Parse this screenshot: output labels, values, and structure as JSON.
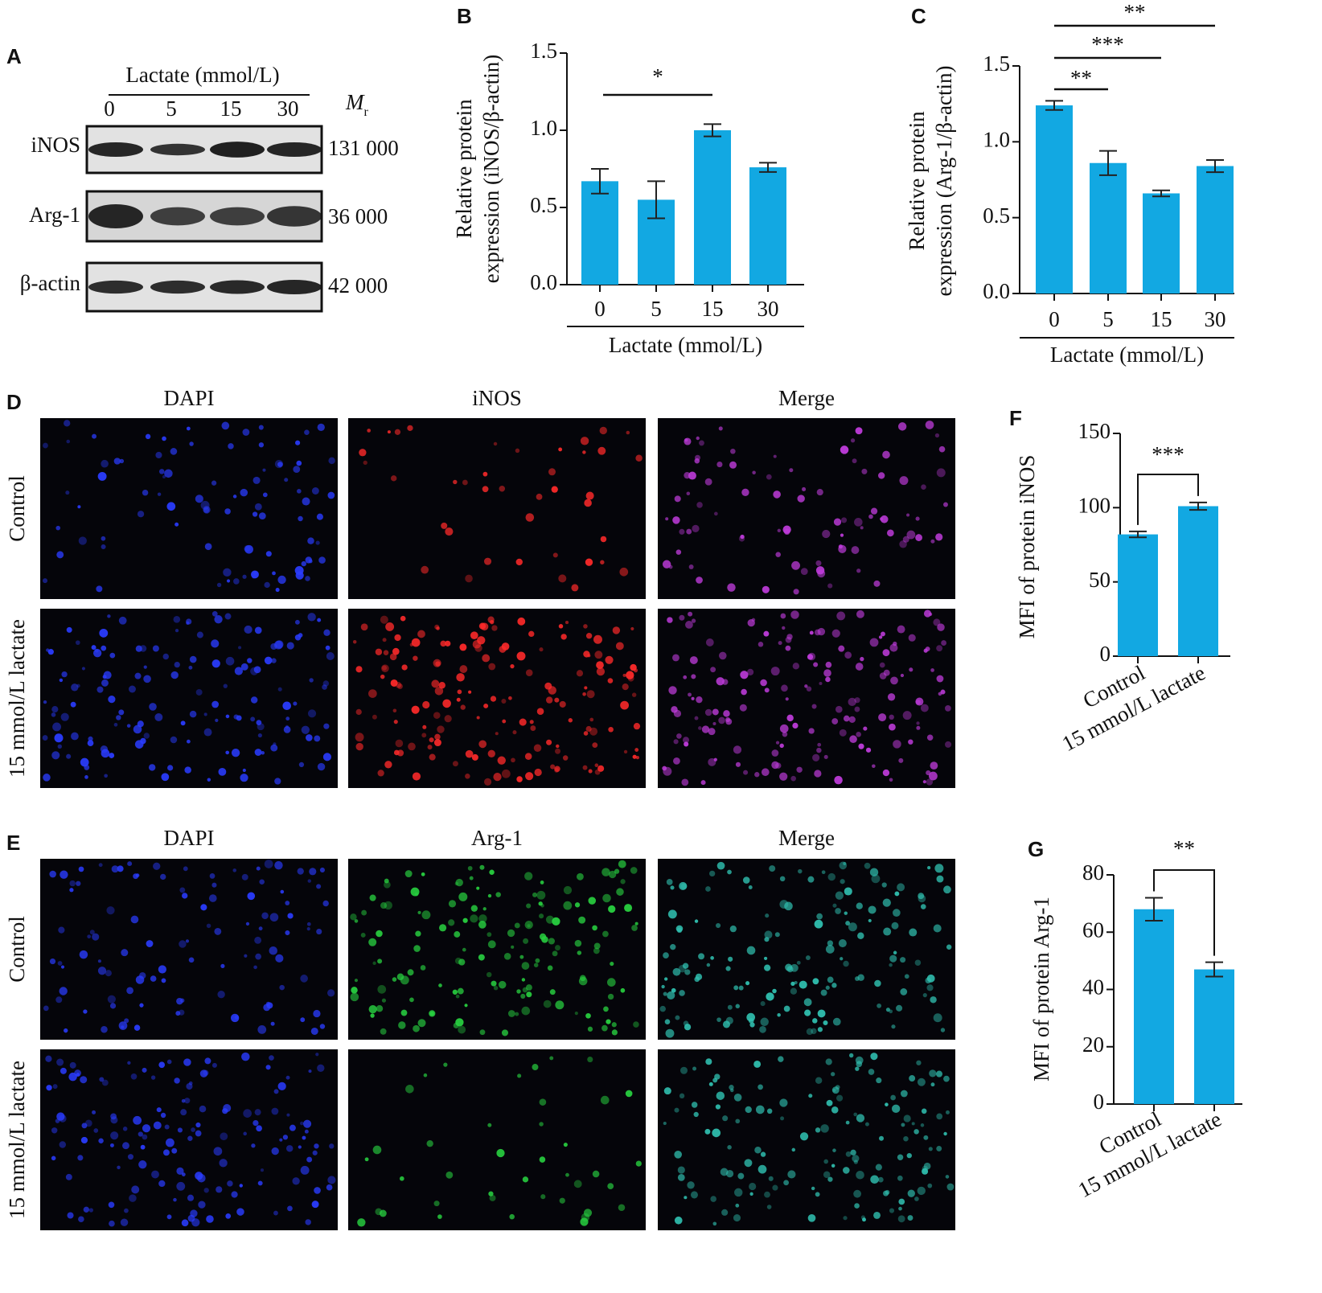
{
  "panels": {
    "A": {
      "letter": "A",
      "header": "Lactate (mmol/L)",
      "lanes": [
        "0",
        "5",
        "15",
        "30"
      ],
      "mr": {
        "symbol": "M",
        "subscript": "r"
      },
      "rows": [
        {
          "label": "iNOS",
          "size": "131 000"
        },
        {
          "label": "Arg-1",
          "size": "36 000"
        },
        {
          "label": "β-actin",
          "size": "42 000"
        }
      ]
    },
    "D": {
      "letter": "D",
      "columns": [
        "DAPI",
        "iNOS",
        "Merge"
      ],
      "rows": [
        "Control",
        "15 mmol/L lactate"
      ]
    },
    "E": {
      "letter": "E",
      "columns": [
        "DAPI",
        "Arg-1",
        "Merge"
      ],
      "rows": [
        "Control",
        "15 mmol/L lactate"
      ]
    }
  },
  "chart_data": [
    {
      "type": "bar",
      "letter": "B",
      "ylabel": [
        "Relative protein",
        "expression (iNOS/β-actin)"
      ],
      "xlabel": "Lactate (mmol/L)",
      "categories": [
        "0",
        "5",
        "15",
        "30"
      ],
      "values": [
        0.67,
        0.55,
        1.0,
        0.76
      ],
      "errors": [
        0.08,
        0.12,
        0.04,
        0.03
      ],
      "color": "#12a8e2",
      "ylim": [
        0,
        1.5
      ],
      "yticks": [
        {
          "value": 0,
          "label": "0.0"
        },
        0.5,
        {
          "value": 1,
          "label": "1.0"
        },
        1.5
      ],
      "annotations": [
        "*"
      ]
    },
    {
      "type": "bar",
      "letter": "C",
      "ylabel": [
        "Relative protein",
        "expression (Arg-1/β-actin)"
      ],
      "xlabel": "Lactate (mmol/L)",
      "categories": [
        "0",
        "5",
        "15",
        "30"
      ],
      "values": [
        1.24,
        0.86,
        0.66,
        0.84
      ],
      "errors": [
        0.03,
        0.08,
        0.02,
        0.04
      ],
      "color": "#12a8e2",
      "ylim": [
        0,
        1.5
      ],
      "yticks": [
        {
          "value": 0,
          "label": "0.0"
        },
        0.5,
        {
          "value": 1,
          "label": "1.0"
        },
        1.5
      ],
      "annotations": [
        "**",
        "***",
        "**"
      ]
    },
    {
      "type": "bar",
      "letter": "F",
      "ylabel": [
        "MFI of protein iNOS"
      ],
      "categories": [
        "Control",
        "15 mmol/L lactate"
      ],
      "values": [
        82,
        101
      ],
      "errors": [
        2,
        2.5
      ],
      "color": "#12a8e2",
      "ylim": [
        0,
        150
      ],
      "yticks": [
        0,
        50,
        100,
        150
      ],
      "annotations": [
        "***"
      ]
    },
    {
      "type": "bar",
      "letter": "G",
      "ylabel": [
        "MFI of protein Arg-1"
      ],
      "categories": [
        "Control",
        "15 mmol/L lactate"
      ],
      "values": [
        68,
        47
      ],
      "errors": [
        4,
        2.5
      ],
      "color": "#12a8e2",
      "ylim": [
        0,
        80
      ],
      "yticks": [
        0,
        20,
        40,
        60,
        80
      ],
      "annotations": [
        "**"
      ]
    }
  ]
}
